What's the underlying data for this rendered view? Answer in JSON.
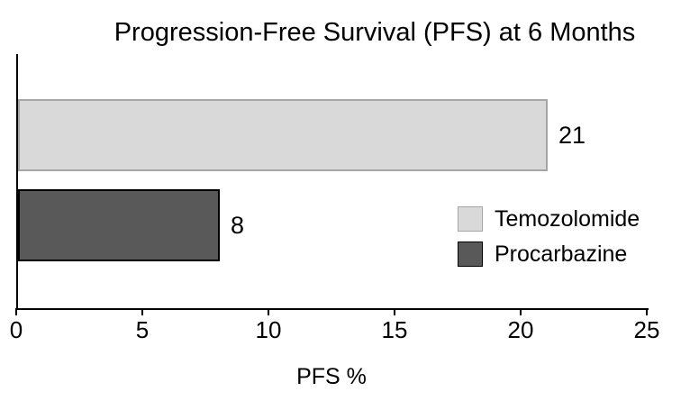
{
  "chart_data": {
    "type": "bar",
    "orientation": "horizontal",
    "title": "Progression-Free Survival (PFS) at 6 Months",
    "xlabel": "PFS %",
    "ylabel": "",
    "xlim": [
      0,
      25
    ],
    "xticks": [
      0,
      5,
      10,
      15,
      20,
      25
    ],
    "grid": false,
    "legend_position": "center-right",
    "series": [
      {
        "name": "Temozolomide",
        "value": 21,
        "color": "#d9d9d9",
        "border_color": "#a6a6a6"
      },
      {
        "name": "Procarbazine",
        "value": 8,
        "color": "#595959",
        "border_color": "#000000"
      }
    ],
    "colors": {
      "axis": "#000000",
      "text": "#000000",
      "background": "#ffffff"
    }
  }
}
